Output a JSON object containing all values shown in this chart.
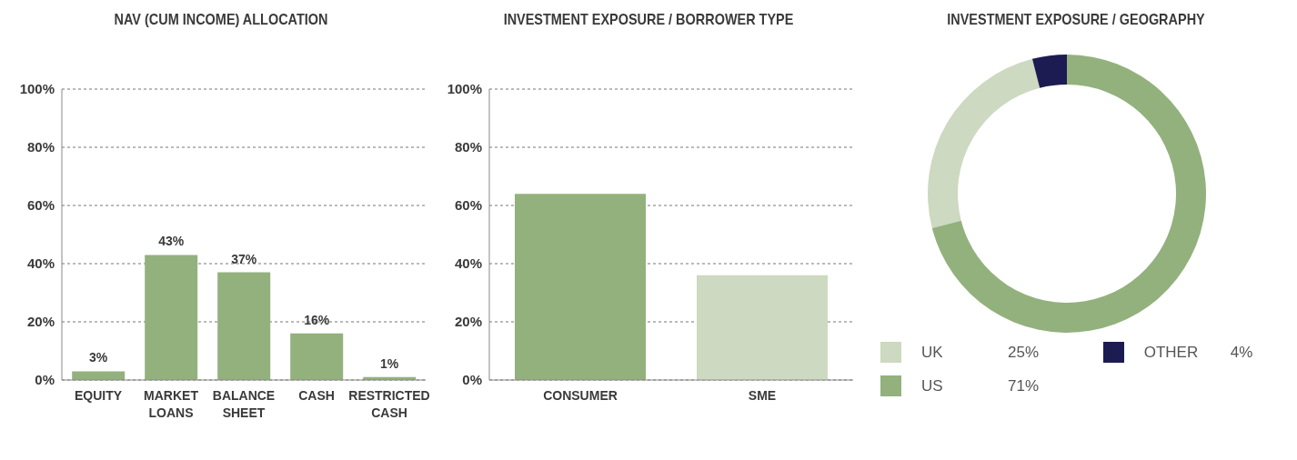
{
  "chart_data": [
    {
      "type": "bar",
      "title": "NAV (CUM INCOME) ALLOCATION",
      "categories": [
        "EQUITY",
        "MARKET LOANS",
        "BALANCE SHEET",
        "CASH",
        "RESTRICTED CASH"
      ],
      "values": [
        3,
        43,
        37,
        16,
        1
      ],
      "value_labels": [
        "3%",
        "43%",
        "37%",
        "16%",
        "1%"
      ],
      "color": "#93b17d",
      "ylim": [
        0,
        100
      ],
      "yticks": [
        {
          "value": 0,
          "label": "0%"
        },
        {
          "value": 20,
          "label": "20%"
        },
        {
          "value": 40,
          "label": "40%"
        },
        {
          "value": 60,
          "label": "60%"
        },
        {
          "value": 80,
          "label": "80%"
        },
        {
          "value": 100,
          "label": "100%"
        }
      ],
      "grid": "y"
    },
    {
      "type": "bar",
      "title": "INVESTMENT EXPOSURE / BORROWER TYPE",
      "categories": [
        "CONSUMER",
        "SME"
      ],
      "values": [
        64,
        36
      ],
      "colors": [
        "#93b17d",
        "#cdd9c0"
      ],
      "ylim": [
        0,
        100
      ],
      "yticks": [
        {
          "value": 0,
          "label": "0%"
        },
        {
          "value": 20,
          "label": "20%"
        },
        {
          "value": 40,
          "label": "40%"
        },
        {
          "value": 60,
          "label": "60%"
        },
        {
          "value": 80,
          "label": "80%"
        },
        {
          "value": 100,
          "label": "100%"
        }
      ],
      "grid": "y"
    },
    {
      "type": "donut",
      "title": "INVESTMENT EXPOSURE / GEOGRAPHY",
      "categories": [
        "UK",
        "OTHER",
        "US"
      ],
      "values": [
        25,
        4,
        71
      ],
      "value_labels": [
        "25%",
        "4%",
        "71%"
      ],
      "colors": [
        "#cdd9c0",
        "#1c1c52",
        "#93b17d"
      ],
      "legend": "bottom"
    }
  ]
}
